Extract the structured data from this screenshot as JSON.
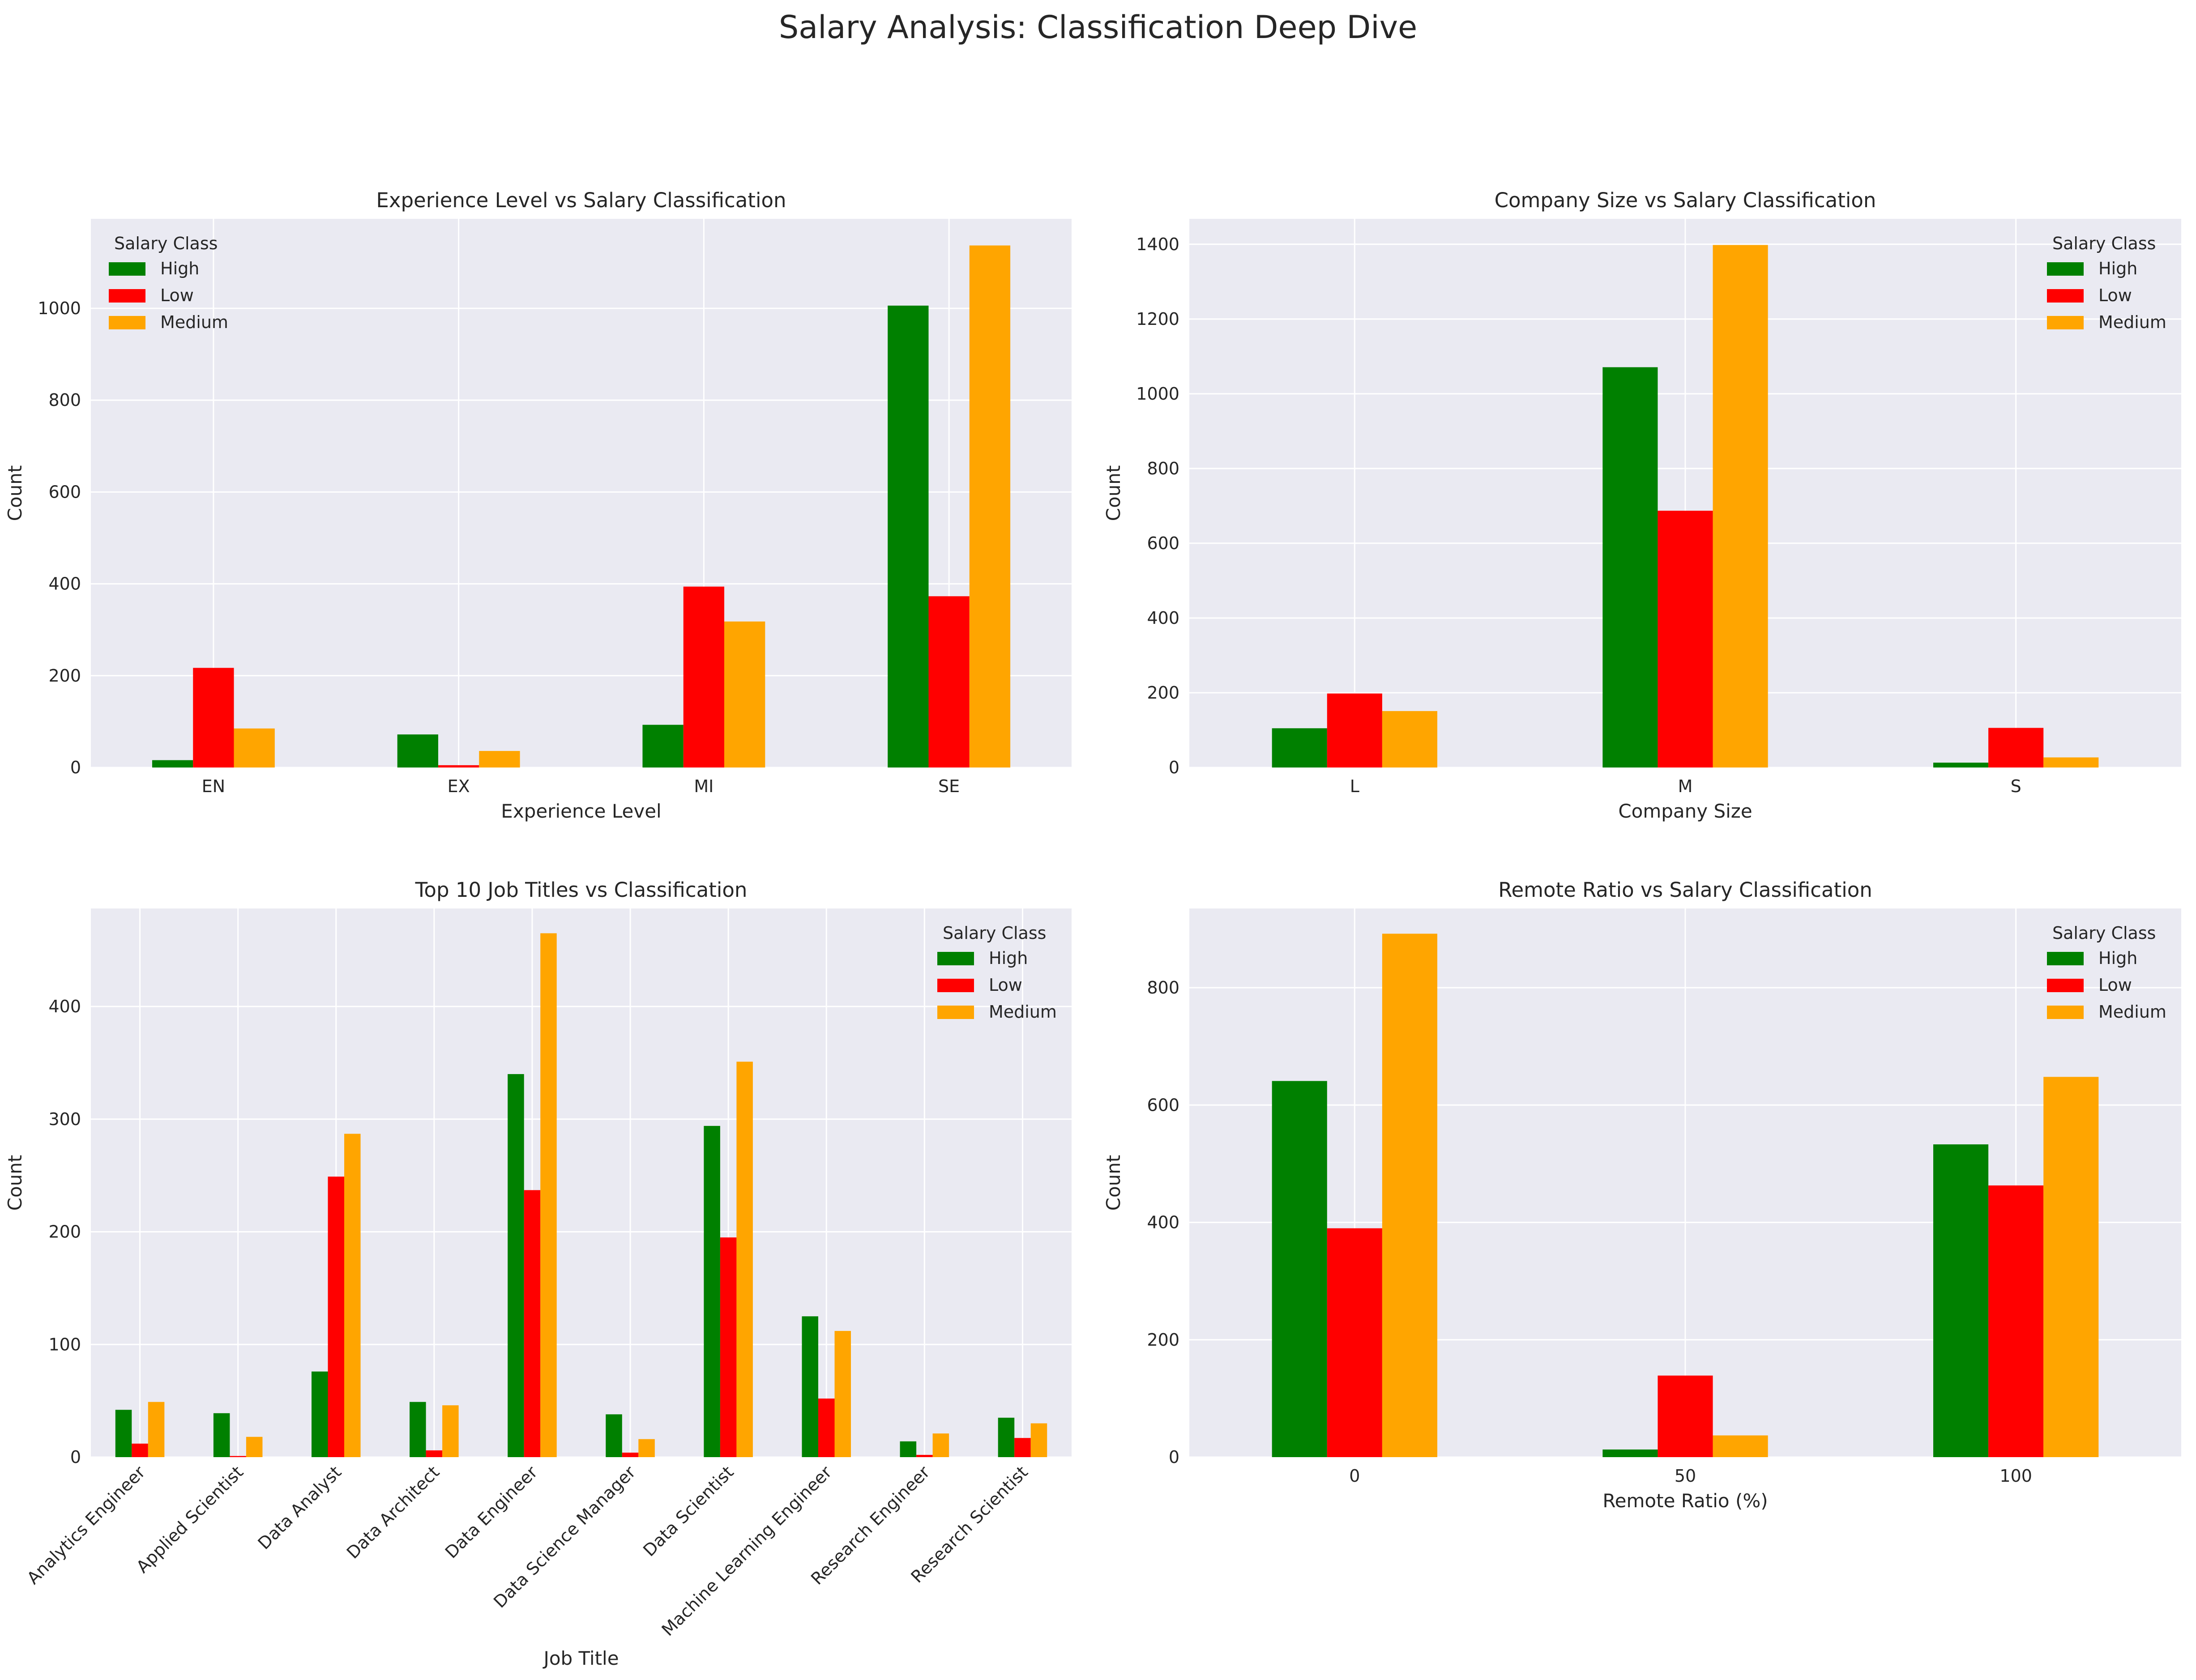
{
  "suptitle": "Salary Analysis: Classification Deep Dive",
  "colors": {
    "High": "#008000",
    "Low": "#ff0000",
    "Medium": "#ffa500"
  },
  "chart_data": [
    {
      "type": "bar",
      "title": "Experience Level vs Salary Classification",
      "xlabel": "Experience Level",
      "ylabel": "Count",
      "categories": [
        "EN",
        "EX",
        "MI",
        "SE"
      ],
      "yticks": [
        0,
        200,
        400,
        600,
        800,
        1000
      ],
      "ylim": [
        0,
        1195
      ],
      "legend": {
        "title": "Salary Class",
        "position": "upper-left"
      },
      "series": [
        {
          "name": "High",
          "values": [
            16,
            72,
            93,
            1006
          ]
        },
        {
          "name": "Low",
          "values": [
            217,
            5,
            394,
            373
          ]
        },
        {
          "name": "Medium",
          "values": [
            85,
            36,
            318,
            1137
          ]
        }
      ]
    },
    {
      "type": "bar",
      "title": "Company Size vs Salary Classification",
      "xlabel": "Company Size",
      "ylabel": "Count",
      "categories": [
        "L",
        "M",
        "S"
      ],
      "yticks": [
        0,
        200,
        400,
        600,
        800,
        1000,
        1200,
        1400
      ],
      "ylim": [
        0,
        1468
      ],
      "legend": {
        "title": "Salary Class",
        "position": "upper-right"
      },
      "series": [
        {
          "name": "High",
          "values": [
            105,
            1071,
            13
          ]
        },
        {
          "name": "Low",
          "values": [
            198,
            687,
            106
          ]
        },
        {
          "name": "Medium",
          "values": [
            151,
            1398,
            27
          ]
        }
      ]
    },
    {
      "type": "bar",
      "title": "Top 10 Job Titles vs Classification",
      "xlabel": "Job Title",
      "ylabel": "Count",
      "categories": [
        "Analytics Engineer",
        "Applied Scientist",
        "Data Analyst",
        "Data Architect",
        "Data Engineer",
        "Data Science Manager",
        "Data Scientist",
        "Machine Learning Engineer",
        "Research Engineer",
        "Research Scientist"
      ],
      "yticks": [
        0,
        100,
        200,
        300,
        400
      ],
      "ylim": [
        0,
        487
      ],
      "legend": {
        "title": "Salary Class",
        "position": "upper-right"
      },
      "series": [
        {
          "name": "High",
          "values": [
            42,
            39,
            76,
            49,
            340,
            38,
            294,
            125,
            14,
            35
          ]
        },
        {
          "name": "Low",
          "values": [
            12,
            1,
            249,
            6,
            237,
            4,
            195,
            52,
            2,
            17
          ]
        },
        {
          "name": "Medium",
          "values": [
            49,
            18,
            287,
            46,
            465,
            16,
            351,
            112,
            21,
            30
          ]
        }
      ]
    },
    {
      "type": "bar",
      "title": "Remote Ratio vs Salary Classification",
      "xlabel": "Remote Ratio (%)",
      "ylabel": "Count",
      "categories": [
        "0",
        "50",
        "100"
      ],
      "yticks": [
        0,
        200,
        400,
        600,
        800
      ],
      "ylim": [
        0,
        935
      ],
      "legend": {
        "title": "Salary Class",
        "position": "upper-right"
      },
      "series": [
        {
          "name": "High",
          "values": [
            641,
            13,
            533
          ]
        },
        {
          "name": "Low",
          "values": [
            390,
            139,
            463
          ]
        },
        {
          "name": "Medium",
          "values": [
            892,
            37,
            648
          ]
        }
      ]
    }
  ]
}
